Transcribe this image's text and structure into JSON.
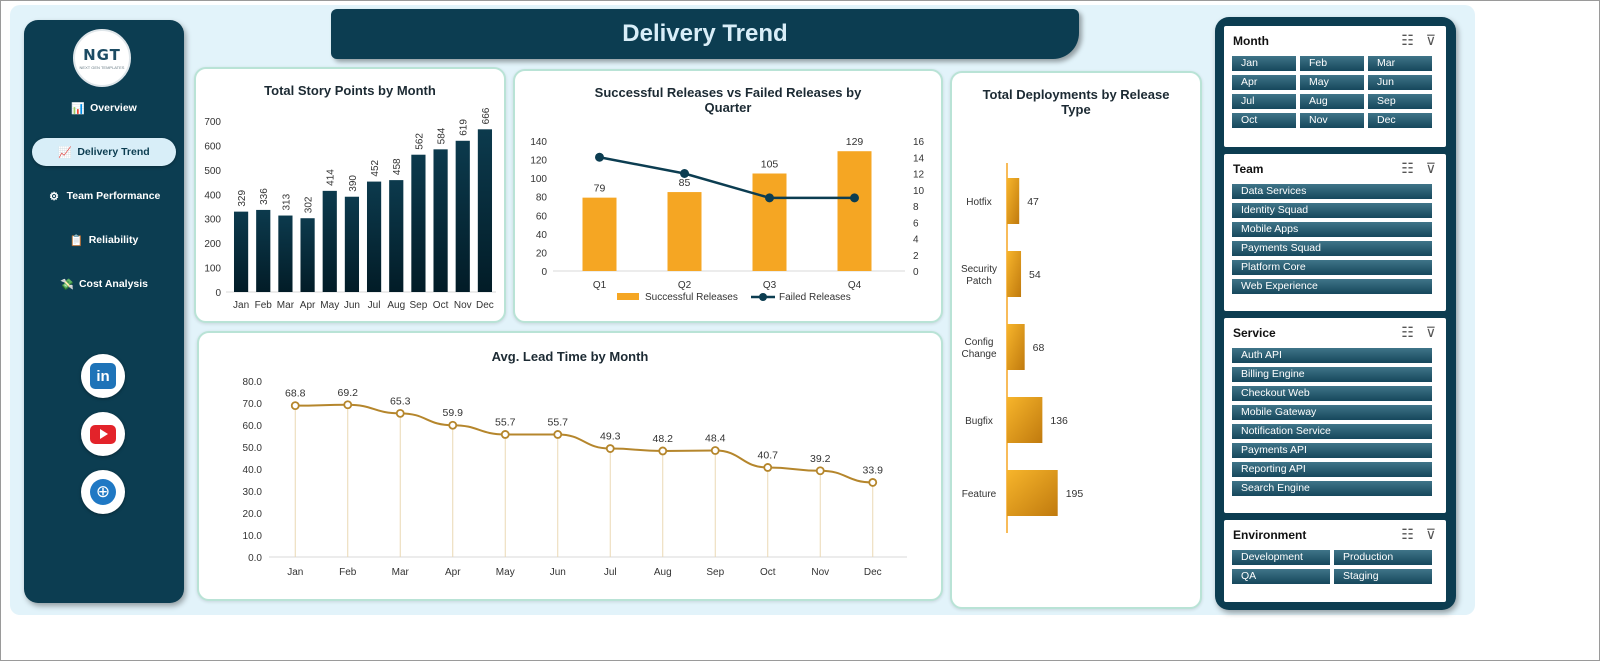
{
  "logo": {
    "main": "NGT",
    "sub": "NEXT GEN TEMPLATES"
  },
  "title": "Delivery Trend",
  "nav": [
    {
      "label": "Overview",
      "icon": "📊"
    },
    {
      "label": "Delivery Trend",
      "icon": "📈"
    },
    {
      "label": "Team Performance",
      "icon": "⚙"
    },
    {
      "label": "Reliability",
      "icon": "📋"
    },
    {
      "label": "Cost Analysis",
      "icon": "💸"
    }
  ],
  "social": {
    "linkedin": "in"
  },
  "colors": {
    "navy": "#0c3d51",
    "accent": "#f5a623",
    "line": "#b5862c",
    "bar": "#0a3c50"
  },
  "chart_data": [
    {
      "type": "bar",
      "title": "Total Story Points by Month",
      "categories": [
        "Jan",
        "Feb",
        "Mar",
        "Apr",
        "May",
        "Jun",
        "Jul",
        "Aug",
        "Sep",
        "Oct",
        "Nov",
        "Dec"
      ],
      "values": [
        329,
        336,
        313,
        302,
        414,
        390,
        452,
        458,
        562,
        584,
        619,
        666
      ],
      "ylim": [
        0,
        700
      ],
      "yticks": [
        "0",
        "100",
        "200",
        "300",
        "400",
        "500",
        "600",
        "700"
      ]
    },
    {
      "type": "bar",
      "title": "Successful Releases vs Failed Releases by Quarter",
      "categories": [
        "Q1",
        "Q2",
        "Q3",
        "Q4"
      ],
      "series": [
        {
          "name": "Successful Releases",
          "values": [
            79,
            85,
            105,
            129
          ]
        },
        {
          "name": "Failed Releases",
          "values": [
            14,
            12,
            9,
            9
          ]
        }
      ],
      "ylim": [
        0,
        140
      ],
      "y2lim": [
        0,
        16
      ],
      "yticks": [
        "0",
        "20",
        "40",
        "60",
        "80",
        "100",
        "120",
        "140"
      ],
      "y2ticks": [
        "0",
        "2",
        "4",
        "6",
        "8",
        "10",
        "12",
        "14",
        "16"
      ],
      "legend": "bottom"
    },
    {
      "type": "line",
      "title": "Avg. Lead Time by Month",
      "categories": [
        "Jan",
        "Feb",
        "Mar",
        "Apr",
        "May",
        "Jun",
        "Jul",
        "Aug",
        "Sep",
        "Oct",
        "Nov",
        "Dec"
      ],
      "values": [
        68.8,
        69.2,
        65.3,
        59.9,
        55.7,
        55.7,
        49.3,
        48.2,
        48.4,
        40.7,
        39.2,
        33.9
      ],
      "value_labels": [
        "68.8",
        "69.2",
        "65.3",
        "59.9",
        "55.7",
        "55.7",
        "49.3",
        "48.2",
        "48.4",
        "40.7",
        "39.2",
        "33.9"
      ],
      "ylim": [
        0,
        80
      ],
      "yticks": [
        "0.0",
        "10.0",
        "20.0",
        "30.0",
        "40.0",
        "50.0",
        "60.0",
        "70.0",
        "80.0"
      ]
    },
    {
      "type": "bar",
      "title": "Total Deployments by Release Type",
      "categories": [
        [
          "Hotfix"
        ],
        [
          "Security",
          "Patch"
        ],
        [
          "Config",
          "Change"
        ],
        [
          "Bugfix"
        ],
        [
          "Feature"
        ]
      ],
      "values": [
        47,
        54,
        68,
        136,
        195
      ],
      "orientation": "horizontal"
    }
  ],
  "slicers": [
    {
      "title": "Month",
      "columns": 3,
      "items": [
        "Jan",
        "Feb",
        "Mar",
        "Apr",
        "May",
        "Jun",
        "Jul",
        "Aug",
        "Sep",
        "Oct",
        "Nov",
        "Dec"
      ]
    },
    {
      "title": "Team",
      "columns": 1,
      "items": [
        "Data Services",
        "Identity Squad",
        "Mobile Apps",
        "Payments Squad",
        "Platform Core",
        "Web Experience"
      ]
    },
    {
      "title": "Service",
      "columns": 1,
      "items": [
        "Auth API",
        "Billing Engine",
        "Checkout Web",
        "Mobile Gateway",
        "Notification Service",
        "Payments API",
        "Reporting API",
        "Search Engine"
      ]
    },
    {
      "title": "Environment",
      "columns": 2,
      "items": [
        "Development",
        "Production",
        "QA",
        "Staging"
      ]
    }
  ]
}
